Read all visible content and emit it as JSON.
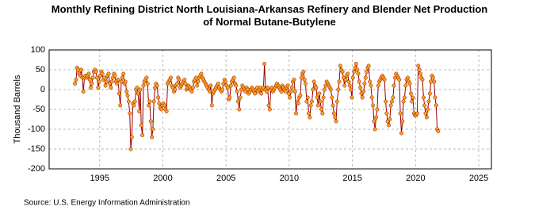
{
  "chart_data": {
    "type": "line",
    "title": "Monthly Refining District North Louisiana-Arkansas Refinery and Blender Net Production of Normal Butane-Butylene",
    "y_label": "Thousand Barrels",
    "source": "Source: U.S. Energy Information Administration",
    "xlim": [
      1991,
      2026
    ],
    "xticks": [
      1995,
      2000,
      2005,
      2010,
      2015,
      2020,
      2025
    ],
    "ylim": [
      -200,
      100
    ],
    "yticks": [
      -200,
      -150,
      -100,
      -50,
      0,
      50,
      100
    ],
    "grid": true,
    "series": [
      {
        "color": "#990000",
        "marker_color": "#f5a623",
        "x": [
          1993.04,
          1993.13,
          1993.21,
          1993.29,
          1993.38,
          1993.46,
          1993.54,
          1993.63,
          1993.71,
          1993.79,
          1993.88,
          1993.96,
          1994.04,
          1994.13,
          1994.21,
          1994.29,
          1994.38,
          1994.46,
          1994.54,
          1994.63,
          1994.71,
          1994.79,
          1994.88,
          1994.96,
          1995.04,
          1995.13,
          1995.21,
          1995.29,
          1995.38,
          1995.46,
          1995.54,
          1995.63,
          1995.71,
          1995.79,
          1995.88,
          1995.96,
          1996.04,
          1996.13,
          1996.21,
          1996.29,
          1996.38,
          1996.46,
          1996.54,
          1996.63,
          1996.71,
          1996.79,
          1996.88,
          1996.96,
          1997.04,
          1997.13,
          1997.21,
          1997.29,
          1997.38,
          1997.46,
          1997.54,
          1997.63,
          1997.71,
          1997.79,
          1997.88,
          1997.96,
          1998.04,
          1998.13,
          1998.21,
          1998.29,
          1998.38,
          1998.46,
          1998.54,
          1998.63,
          1998.71,
          1998.79,
          1998.88,
          1998.96,
          1999.04,
          1999.13,
          1999.21,
          1999.29,
          1999.38,
          1999.46,
          1999.54,
          1999.63,
          1999.71,
          1999.79,
          1999.88,
          1999.96,
          2000.04,
          2000.13,
          2000.21,
          2000.29,
          2000.38,
          2000.46,
          2000.54,
          2000.63,
          2000.71,
          2000.79,
          2000.88,
          2000.96,
          2001.04,
          2001.13,
          2001.21,
          2001.29,
          2001.38,
          2001.46,
          2001.54,
          2001.63,
          2001.71,
          2001.79,
          2001.88,
          2001.96,
          2002.04,
          2002.13,
          2002.21,
          2002.29,
          2002.38,
          2002.46,
          2002.54,
          2002.63,
          2002.71,
          2002.79,
          2002.88,
          2002.96,
          2003.04,
          2003.13,
          2003.21,
          2003.29,
          2003.38,
          2003.46,
          2003.54,
          2003.63,
          2003.71,
          2003.79,
          2003.88,
          2003.96,
          2004.04,
          2004.13,
          2004.21,
          2004.29,
          2004.38,
          2004.46,
          2004.54,
          2004.63,
          2004.71,
          2004.79,
          2004.88,
          2004.96,
          2005.04,
          2005.13,
          2005.21,
          2005.29,
          2005.38,
          2005.46,
          2005.54,
          2005.63,
          2005.71,
          2005.79,
          2005.88,
          2005.96,
          2006.04,
          2006.13,
          2006.21,
          2006.29,
          2006.38,
          2006.46,
          2006.54,
          2006.63,
          2006.71,
          2006.79,
          2006.88,
          2006.96,
          2007.04,
          2007.13,
          2007.21,
          2007.29,
          2007.38,
          2007.46,
          2007.54,
          2007.63,
          2007.71,
          2007.79,
          2007.88,
          2007.96,
          2008.04,
          2008.13,
          2008.21,
          2008.29,
          2008.38,
          2008.46,
          2008.54,
          2008.63,
          2008.71,
          2008.79,
          2008.88,
          2008.96,
          2009.04,
          2009.13,
          2009.21,
          2009.29,
          2009.38,
          2009.46,
          2009.54,
          2009.63,
          2009.71,
          2009.79,
          2009.88,
          2009.96,
          2010.04,
          2010.13,
          2010.21,
          2010.29,
          2010.38,
          2010.46,
          2010.54,
          2010.63,
          2010.71,
          2010.79,
          2010.88,
          2010.96,
          2011.04,
          2011.13,
          2011.21,
          2011.29,
          2011.38,
          2011.46,
          2011.54,
          2011.63,
          2011.71,
          2011.79,
          2011.88,
          2011.96,
          2012.04,
          2012.13,
          2012.21,
          2012.29,
          2012.38,
          2012.46,
          2012.54,
          2012.63,
          2012.71,
          2012.79,
          2012.88,
          2012.96,
          2013.04,
          2013.13,
          2013.21,
          2013.29,
          2013.38,
          2013.46,
          2013.54,
          2013.63,
          2013.71,
          2013.79,
          2013.88,
          2013.96,
          2014.04,
          2014.13,
          2014.21,
          2014.29,
          2014.38,
          2014.46,
          2014.54,
          2014.63,
          2014.71,
          2014.79,
          2014.88,
          2014.96,
          2015.04,
          2015.13,
          2015.21,
          2015.29,
          2015.38,
          2015.46,
          2015.54,
          2015.63,
          2015.71,
          2015.79,
          2015.88,
          2015.96,
          2016.04,
          2016.13,
          2016.21,
          2016.29,
          2016.38,
          2016.46,
          2016.54,
          2016.63,
          2016.71,
          2016.79,
          2016.88,
          2016.96,
          2017.04,
          2017.13,
          2017.21,
          2017.29,
          2017.38,
          2017.46,
          2017.54,
          2017.63,
          2017.71,
          2017.79,
          2017.88,
          2017.96,
          2018.04,
          2018.13,
          2018.21,
          2018.29,
          2018.38,
          2018.46,
          2018.54,
          2018.63,
          2018.71,
          2018.79,
          2018.88,
          2018.96,
          2019.04,
          2019.13,
          2019.21,
          2019.29,
          2019.38,
          2019.46,
          2019.54,
          2019.63,
          2019.71,
          2019.79,
          2019.88,
          2019.96,
          2020.04,
          2020.13,
          2020.21,
          2020.29,
          2020.38,
          2020.46,
          2020.54,
          2020.63,
          2020.71,
          2020.79,
          2020.88,
          2020.96,
          2021.04,
          2021.13,
          2021.21,
          2021.29,
          2021.38,
          2021.46,
          2021.54,
          2021.63,
          2021.71,
          2021.79
        ],
        "values": [
          15,
          25,
          55,
          50,
          40,
          35,
          50,
          30,
          -5,
          30,
          35,
          30,
          35,
          40,
          25,
          5,
          15,
          30,
          45,
          50,
          45,
          30,
          5,
          20,
          35,
          45,
          40,
          25,
          30,
          10,
          20,
          35,
          40,
          15,
          5,
          20,
          30,
          40,
          35,
          20,
          15,
          25,
          -10,
          -40,
          20,
          30,
          40,
          15,
          20,
          -5,
          -15,
          -30,
          -60,
          -150,
          -120,
          -35,
          -40,
          -30,
          0,
          5,
          -10,
          -55,
          0,
          -90,
          -115,
          10,
          20,
          25,
          30,
          15,
          -40,
          -30,
          -80,
          -120,
          -100,
          -30,
          5,
          15,
          10,
          -20,
          -35,
          -45,
          -50,
          -40,
          -35,
          -40,
          -50,
          -55,
          15,
          20,
          25,
          30,
          10,
          5,
          -5,
          0,
          10,
          15,
          30,
          25,
          5,
          10,
          15,
          20,
          25,
          15,
          0,
          5,
          10,
          5,
          0,
          -5,
          5,
          20,
          25,
          30,
          10,
          20,
          30,
          35,
          40,
          30,
          25,
          20,
          15,
          10,
          5,
          0,
          -5,
          10,
          -40,
          -10,
          -5,
          0,
          5,
          10,
          15,
          5,
          0,
          -5,
          0,
          15,
          25,
          20,
          10,
          5,
          -25,
          -20,
          10,
          20,
          25,
          30,
          15,
          10,
          -5,
          -30,
          -50,
          -20,
          0,
          10,
          5,
          0,
          -5,
          5,
          0,
          -10,
          -5,
          0,
          5,
          0,
          -5,
          -10,
          0,
          5,
          -5,
          0,
          5,
          -10,
          0,
          5,
          65,
          0,
          -5,
          5,
          -40,
          -50,
          0,
          5,
          -5,
          0,
          5,
          10,
          15,
          10,
          5,
          0,
          -5,
          10,
          5,
          0,
          -5,
          5,
          10,
          -10,
          -20,
          -5,
          5,
          20,
          25,
          -5,
          -60,
          -30,
          -35,
          -20,
          -15,
          30,
          40,
          45,
          25,
          15,
          -30,
          -20,
          -60,
          -70,
          -40,
          -30,
          0,
          20,
          10,
          5,
          -20,
          -40,
          -10,
          -30,
          -50,
          -60,
          -20,
          0,
          10,
          20,
          15,
          10,
          5,
          0,
          -20,
          -40,
          -60,
          -70,
          -80,
          -30,
          0,
          20,
          60,
          50,
          45,
          30,
          10,
          25,
          35,
          40,
          20,
          10,
          0,
          -20,
          30,
          45,
          55,
          65,
          50,
          40,
          20,
          5,
          -10,
          -20,
          -5,
          15,
          30,
          45,
          55,
          60,
          20,
          10,
          -20,
          -40,
          -80,
          -100,
          -70,
          -50,
          10,
          20,
          25,
          30,
          35,
          30,
          25,
          -30,
          -60,
          -80,
          -90,
          -75,
          -40,
          -30,
          -20,
          10,
          30,
          40,
          35,
          30,
          25,
          -60,
          -110,
          -80,
          -30,
          -20,
          10,
          25,
          30,
          20,
          15,
          -10,
          -30,
          -20,
          -60,
          -65,
          -65,
          -60,
          60,
          50,
          40,
          30,
          25,
          -20,
          -40,
          -60,
          -70,
          -50,
          -30,
          -10,
          20,
          35,
          30,
          20,
          -20,
          -40,
          -100,
          -105
        ]
      }
    ]
  }
}
